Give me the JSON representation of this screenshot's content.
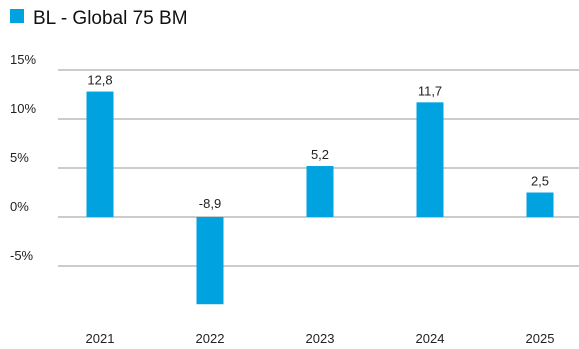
{
  "chart_data": {
    "type": "bar",
    "categories": [
      "2021",
      "2022",
      "2023",
      "2024",
      "2025"
    ],
    "series": [
      {
        "name": "BL - Global 75 BM",
        "values": [
          12.8,
          -8.9,
          5.2,
          11.7,
          2.5
        ],
        "value_labels": [
          "12,8",
          "-8,9",
          "5,2",
          "11,7",
          "2,5"
        ],
        "color": "#00a3e0"
      }
    ],
    "yticks": [
      15,
      10,
      5,
      0,
      -5
    ],
    "ytick_labels": [
      "15%",
      "10%",
      "5%",
      "0%",
      "-5%"
    ],
    "ylim": [
      -9,
      15
    ],
    "grid": true,
    "legend": "top-left",
    "xlabel": "",
    "ylabel": ""
  }
}
